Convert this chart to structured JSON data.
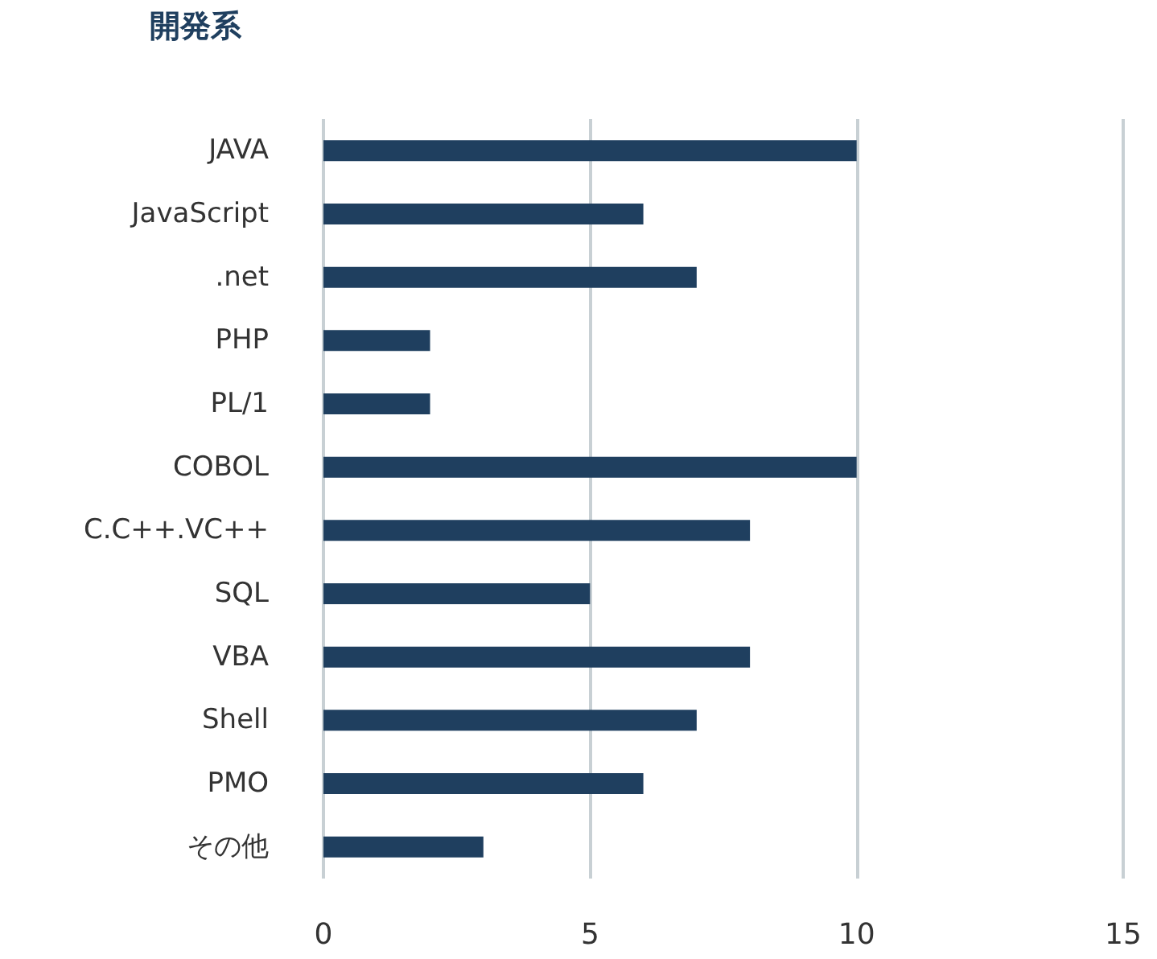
{
  "chart_data": {
    "type": "bar",
    "title": "開発系",
    "orientation": "horizontal",
    "categories": [
      "JAVA",
      "JavaScript",
      ".net",
      "PHP",
      "PL/1",
      "COBOL",
      "C.C++.VC++",
      "SQL",
      "VBA",
      "Shell",
      "PMO",
      "その他"
    ],
    "values": [
      10,
      6,
      7,
      2,
      2,
      10,
      8,
      5,
      8,
      7,
      6,
      3
    ],
    "color": "#1f3f5f",
    "xlim": [
      0,
      15
    ],
    "xticks": [
      0,
      5,
      10,
      15
    ],
    "grid": "x"
  }
}
